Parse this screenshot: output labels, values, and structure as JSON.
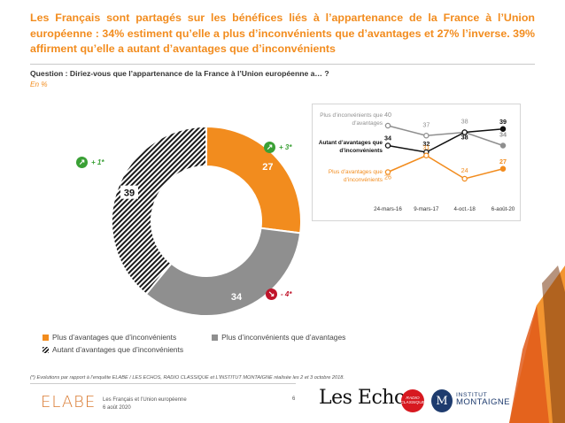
{
  "headline": "Les Français sont partagés sur les bénéfices liés à l’appartenance de la France à l’Union européenne : 34% estiment qu’elle a plus d’inconvénients que d’avantages et 27% l’inverse. 39% affirment qu’elle a autant d’avantages que d’inconvénients",
  "question": "Question : Diriez-vous que l’appartenance de la France à l’Union européenne a… ?",
  "unit_label": "En %",
  "evolutions": {
    "advantages": {
      "text": "+ 3*",
      "direction": "up",
      "icon": "arrow-up-right-icon"
    },
    "equal": {
      "text": "+ 1*",
      "direction": "up",
      "icon": "arrow-up-right-icon"
    },
    "disadvantages": {
      "text": "- 4*",
      "direction": "down",
      "icon": "arrow-down-right-icon"
    }
  },
  "legend": {
    "advantages": "Plus d’avantages que d’inconvénients",
    "disadvantages": "Plus d’inconvénients que d’avantages",
    "equal": "Autant d’avantages que d’inconvénients"
  },
  "colors": {
    "orange": "#f28c1e",
    "grey": "#8f8f8f",
    "black": "#111111",
    "green": "#3aa035",
    "red": "#c0142a"
  },
  "chart_data": [
    {
      "type": "pie",
      "categories": [
        "Plus d’avantages que d’inconvénients",
        "Plus d’inconvénients que d’avantages",
        "Autant d’avantages que d’inconvénients"
      ],
      "values": [
        27,
        34,
        39
      ],
      "labels": [
        "27",
        "34",
        "39"
      ],
      "colors": [
        "#f28c1e",
        "#8f8f8f",
        "hatched-black"
      ],
      "donut": true
    },
    {
      "type": "line",
      "categories": [
        "24-mars-16",
        "9-mars-17",
        "4-oct.-18",
        "6-août-20"
      ],
      "series": [
        {
          "name": "Plus d’inconvénients que d’avantages",
          "values": [
            40,
            37,
            38,
            34
          ],
          "color": "#8f8f8f"
        },
        {
          "name": "Autant d’avantages que d’inconvénients",
          "values": [
            34,
            32,
            38,
            39
          ],
          "color": "#111111"
        },
        {
          "name": "Plus d’avantages que d’inconvénients",
          "values": [
            26,
            31,
            24,
            27
          ],
          "color": "#f28c1e"
        }
      ],
      "series_labels": [
        "Plus d’inconvénients que d’avantages",
        "Autant d’avantages que d’inconvénients",
        "Plus d’avantages que d’inconvénients"
      ],
      "ylim": [
        20,
        44
      ]
    }
  ],
  "footnote": "(*) Evolutions par rapport à l’enquête ELABE / LES ECHOS, RADIO CLASSIQUE et L’INSTITUT MONTAIGNE réalisée les 2 et 3 octobre 2018.",
  "footer": {
    "brand": "ELABE",
    "title": "Les Français et l’Union européenne",
    "date": "6 août 2020",
    "page": "6",
    "partner1": "Les Echos",
    "partner2": "RADIO CLASSIQUE",
    "partner3_line1": "INSTITUT",
    "partner3_line2": "MONTAIGNE",
    "partner3_mark": "M"
  }
}
